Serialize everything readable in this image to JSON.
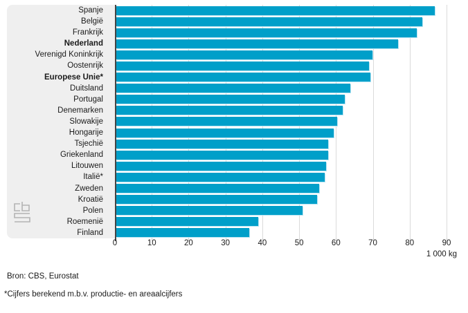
{
  "chart_data": {
    "type": "bar",
    "orientation": "horizontal",
    "title": "",
    "xlabel": "1 000 kg",
    "ylabel": "",
    "xlim": [
      0,
      92
    ],
    "x_ticks": [
      0,
      10,
      20,
      30,
      40,
      50,
      60,
      70,
      80,
      90
    ],
    "grid": true,
    "categories": [
      "Spanje",
      "België",
      "Frankrijk",
      "Nederland",
      "Verenigd Koninkrijk",
      "Oostenrijk",
      "Europese Unie*",
      "Duitsland",
      "Portugal",
      "Denemarken",
      "Slowakije",
      "Hongarije",
      "Tsjechië",
      "Griekenland",
      "Litouwen",
      "Italië*",
      "Zweden",
      "Kroatië",
      "Polen",
      "Roemenië",
      "Finland"
    ],
    "values": [
      86.5,
      83,
      81.5,
      76.5,
      69.5,
      68.5,
      69,
      63.5,
      62,
      61.5,
      60,
      59,
      57.5,
      57.5,
      57,
      56.5,
      55,
      54.5,
      50.5,
      38.5,
      36
    ],
    "bold_indices": [
      3,
      6
    ]
  },
  "axis": {
    "unit_label": "1 000 kg"
  },
  "footer": {
    "source": "Bron: CBS, Eurostat",
    "footnote": "*Cijfers berekend m.b.v. productie- en areaalcijfers"
  },
  "branding": {
    "logo": "cbs-logo"
  },
  "colors": {
    "bar": "#009fc9",
    "bar_highlight": "#b5e3f2",
    "panel": "#efefef",
    "gridline": "#dadada",
    "axis_line": "#444444",
    "text": "#1a1a1a",
    "logo": "#b3b3b3"
  }
}
